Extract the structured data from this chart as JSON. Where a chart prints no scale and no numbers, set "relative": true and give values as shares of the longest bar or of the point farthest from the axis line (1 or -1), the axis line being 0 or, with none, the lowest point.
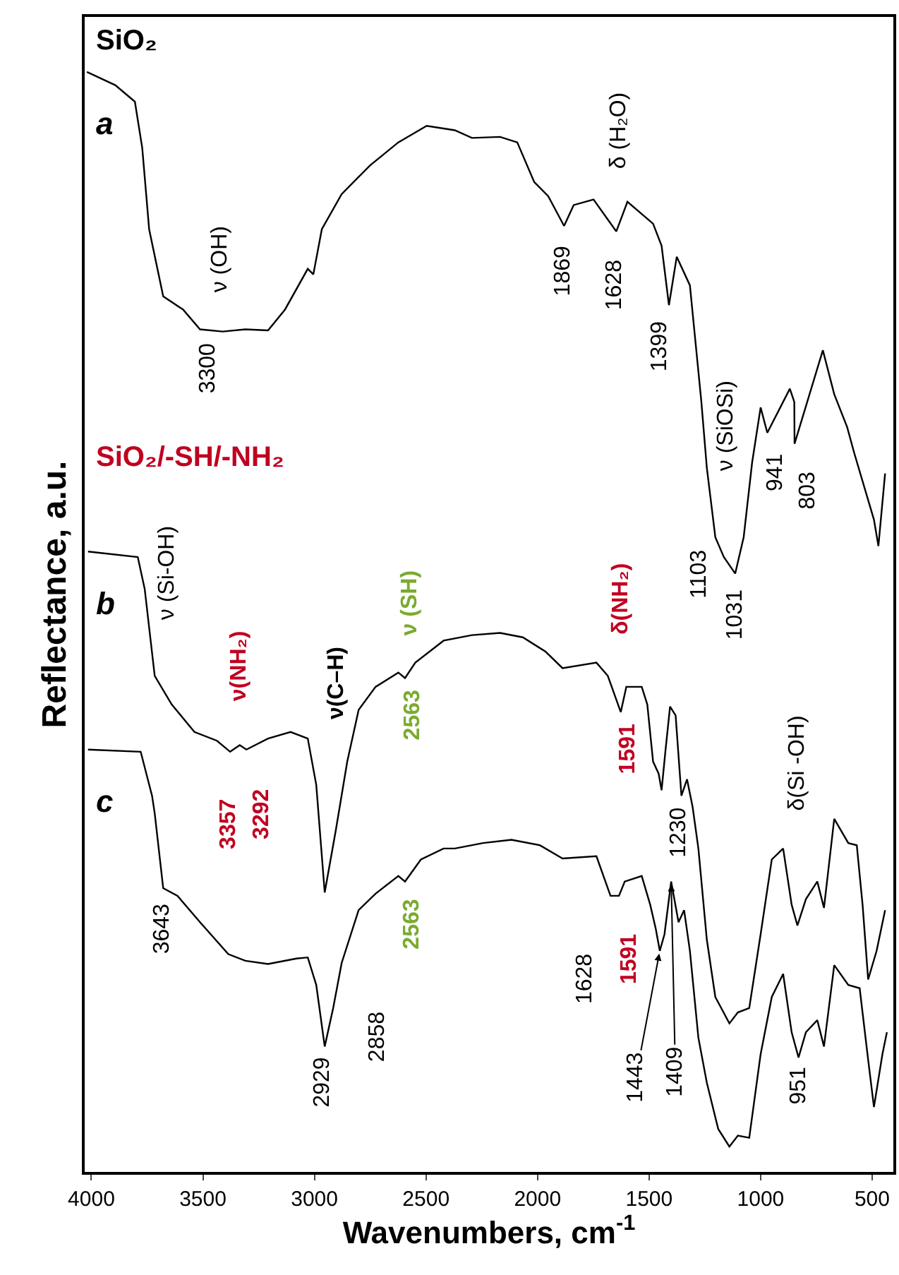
{
  "chart_data": {
    "type": "line",
    "relative": true,
    "xlabel": "Wavenumbers, cm$^{-1}$",
    "ylabel": "Reflectance, a.u.",
    "xlim": [
      4030,
      405
    ],
    "xticks": [
      4000,
      3500,
      3000,
      2500,
      2000,
      1500,
      1000,
      500
    ],
    "legend": false,
    "marker": "none",
    "line_style": "solid",
    "tick_labels": "x",
    "series": [
      {
        "name": "a",
        "color": "#000000",
        "x": [
          4020,
          3893,
          3805,
          3772,
          3741,
          3678,
          3589,
          3513,
          3411,
          3310,
          3208,
          3132,
          3030,
          3005,
          2967,
          2878,
          2751,
          2624,
          2497,
          2371,
          2294,
          2168,
          2091,
          2015,
          1952,
          1881,
          1838,
          1749,
          1647,
          1597,
          1482,
          1444,
          1411,
          1376,
          1317,
          1266,
          1241,
          1203,
          1165,
          1114,
          1076,
          1038,
          1000,
          970,
          869,
          849,
          848,
          721,
          670,
          612,
          581,
          492,
          472,
          442
        ],
        "values": [
          1.0,
          0.988,
          0.973,
          0.931,
          0.857,
          0.796,
          0.784,
          0.766,
          0.764,
          0.766,
          0.765,
          0.784,
          0.821,
          0.816,
          0.857,
          0.889,
          0.915,
          0.936,
          0.951,
          0.947,
          0.94,
          0.941,
          0.936,
          0.9,
          0.887,
          0.86,
          0.879,
          0.884,
          0.855,
          0.882,
          0.862,
          0.842,
          0.788,
          0.832,
          0.806,
          0.701,
          0.64,
          0.577,
          0.559,
          0.544,
          0.577,
          0.645,
          0.695,
          0.672,
          0.712,
          0.7,
          0.662,
          0.747,
          0.707,
          0.677,
          0.654,
          0.593,
          0.569,
          0.635
        ]
      },
      {
        "name": "b",
        "color": "#000000",
        "x": [
          4015,
          3792,
          3761,
          3716,
          3640,
          3538,
          3437,
          3378,
          3335,
          3305,
          3208,
          3107,
          3030,
          2992,
          2954,
          2904,
          2853,
          2802,
          2726,
          2624,
          2594,
          2548,
          2421,
          2294,
          2168,
          2066,
          1964,
          1888,
          1736,
          1685,
          1627,
          1602,
          1533,
          1508,
          1482,
          1457,
          1444,
          1426,
          1406,
          1381,
          1355,
          1330,
          1305,
          1279,
          1241,
          1203,
          1140,
          1102,
          1051,
          1000,
          950,
          899,
          861,
          835,
          797,
          746,
          716,
          670,
          607,
          569,
          543,
          518,
          480,
          442
        ],
        "values": [
          0.564,
          0.559,
          0.53,
          0.451,
          0.425,
          0.4,
          0.392,
          0.382,
          0.388,
          0.384,
          0.394,
          0.4,
          0.394,
          0.352,
          0.254,
          0.311,
          0.373,
          0.42,
          0.441,
          0.454,
          0.449,
          0.463,
          0.483,
          0.488,
          0.49,
          0.486,
          0.473,
          0.458,
          0.463,
          0.451,
          0.418,
          0.441,
          0.441,
          0.425,
          0.373,
          0.362,
          0.347,
          0.384,
          0.423,
          0.415,
          0.342,
          0.357,
          0.332,
          0.294,
          0.211,
          0.159,
          0.135,
          0.145,
          0.149,
          0.216,
          0.284,
          0.294,
          0.243,
          0.224,
          0.248,
          0.264,
          0.24,
          0.321,
          0.299,
          0.297,
          0.243,
          0.175,
          0.201,
          0.238
        ]
      },
      {
        "name": "c",
        "color": "#000000",
        "x": [
          4015,
          3779,
          3728,
          3716,
          3678,
          3614,
          3513,
          3386,
          3310,
          3208,
          3081,
          3030,
          2992,
          2954,
          2916,
          2878,
          2802,
          2726,
          2624,
          2594,
          2523,
          2421,
          2371,
          2244,
          2117,
          1990,
          1888,
          1736,
          1673,
          1635,
          1609,
          1533,
          1495,
          1470,
          1452,
          1431,
          1401,
          1368,
          1343,
          1317,
          1279,
          1241,
          1190,
          1140,
          1102,
          1051,
          1000,
          950,
          899,
          861,
          830,
          797,
          746,
          716,
          670,
          607,
          556,
          518,
          492,
          454,
          434
        ],
        "values": [
          0.384,
          0.382,
          0.342,
          0.326,
          0.258,
          0.251,
          0.227,
          0.198,
          0.192,
          0.189,
          0.194,
          0.195,
          0.17,
          0.114,
          0.149,
          0.19,
          0.238,
          0.253,
          0.269,
          0.264,
          0.284,
          0.294,
          0.294,
          0.299,
          0.302,
          0.297,
          0.285,
          0.287,
          0.251,
          0.251,
          0.264,
          0.269,
          0.243,
          0.221,
          0.201,
          0.216,
          0.264,
          0.227,
          0.238,
          0.201,
          0.122,
          0.081,
          0.039,
          0.023,
          0.033,
          0.031,
          0.107,
          0.159,
          0.18,
          0.127,
          0.104,
          0.127,
          0.138,
          0.114,
          0.188,
          0.17,
          0.167,
          0.102,
          0.059,
          0.107,
          0.127
        ]
      }
    ],
    "annotations": [
      {
        "text": "SiO₂"
      },
      {
        "text": "SiO₂/-SH/-NH₂"
      },
      {
        "text": "3300",
        "x": 3411,
        "y": 0.764
      },
      {
        "text": "ν (OH)",
        "x": 3411,
        "y": 0.764
      },
      {
        "text": "1869",
        "x": 1881,
        "y": 0.86
      },
      {
        "text": "1628",
        "x": 1647,
        "y": 0.855
      },
      {
        "text": "δ (H₂O)",
        "x": 1647,
        "y": 0.855
      },
      {
        "text": "1399",
        "x": 1411,
        "y": 0.788
      },
      "ν (SiOSi)",
      {
        "text": "941",
        "x": 1000,
        "y": 0.695
      },
      {
        "text": "803",
        "x": 848,
        "y": 0.662
      },
      {
        "text": "1103",
        "x": 1165,
        "y": 0.559
      },
      {
        "text": "1031",
        "x": 1114,
        "y": 0.544
      },
      {
        "text": "ν (Si-OH)",
        "x": 3761,
        "y": 0.53
      },
      {
        "text": "ν(NH₂)",
        "x": 3335,
        "y": 0.388
      },
      {
        "text": "3357",
        "x": 3378,
        "y": 0.382
      },
      {
        "text": "3292",
        "x": 3305,
        "y": 0.384
      },
      "ν(C–H)",
      {
        "text": "ν (SH)",
        "x": 2594,
        "y": 0.449
      },
      {
        "text": "2563",
        "x": 2594,
        "y": 0.449
      },
      "δ(NH₂)",
      {
        "text": "1591",
        "x": 1627,
        "y": 0.418
      },
      {
        "text": "1230",
        "x": 1355,
        "y": 0.342
      },
      "δ(Si -OH)",
      {
        "text": "3643",
        "x": 3678,
        "y": 0.258
      },
      {
        "text": "2929",
        "x": 2954,
        "y": 0.114
      },
      {
        "text": "2858",
        "x": 2878,
        "y": 0.19
      },
      {
        "text": "2563",
        "x": 2594,
        "y": 0.264
      },
      {
        "text": "1628",
        "x": 1635,
        "y": 0.251
      },
      {
        "text": "1591",
        "x": 1609,
        "y": 0.264
      },
      {
        "text": "1443",
        "x": 1452,
        "y": 0.201
      },
      {
        "text": "1409",
        "x": 1401,
        "y": 0.264
      },
      {
        "text": "951",
        "x": 830,
        "y": 0.104
      }
    ]
  }
}
